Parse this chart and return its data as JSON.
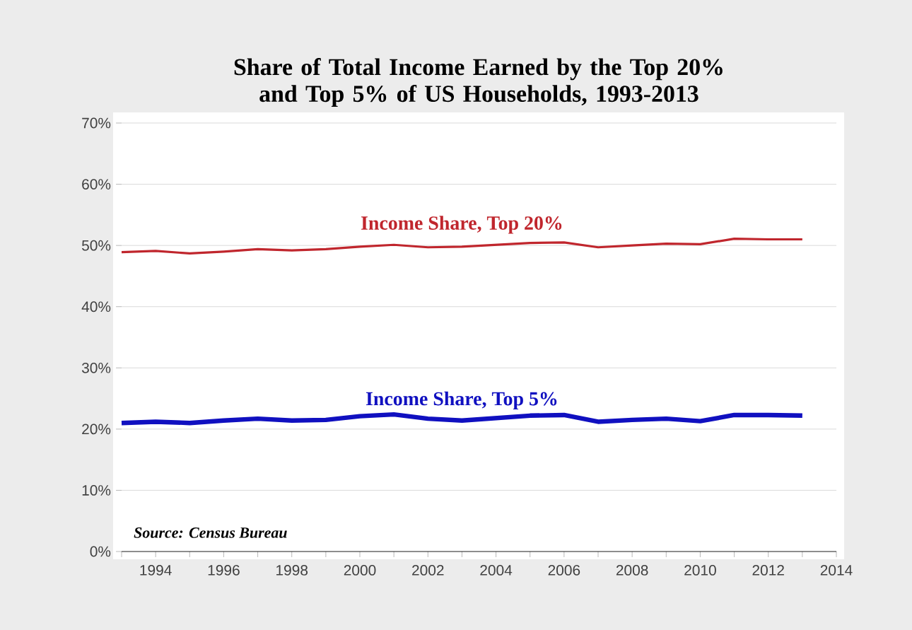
{
  "chart_data": {
    "type": "line",
    "title": "Share of Total Income Earned by the Top 20% and Top 5% of US Households, 1993-2013",
    "x": [
      1993,
      1994,
      1995,
      1996,
      1997,
      1998,
      1999,
      2000,
      2001,
      2002,
      2003,
      2004,
      2005,
      2006,
      2007,
      2008,
      2009,
      2010,
      2011,
      2012,
      2013
    ],
    "series": [
      {
        "name": "Income Share, Top 20%",
        "color": "#c0262d",
        "values": [
          48.9,
          49.1,
          48.7,
          49.0,
          49.4,
          49.2,
          49.4,
          49.8,
          50.1,
          49.7,
          49.8,
          50.1,
          50.4,
          50.5,
          49.7,
          50.0,
          50.3,
          50.2,
          51.1,
          51.0,
          51.0
        ]
      },
      {
        "name": "Income Share, Top 5%",
        "color": "#1010c0",
        "values": [
          21.0,
          21.2,
          21.0,
          21.4,
          21.7,
          21.4,
          21.5,
          22.1,
          22.4,
          21.7,
          21.4,
          21.8,
          22.2,
          22.3,
          21.2,
          21.5,
          21.7,
          21.3,
          22.3,
          22.3,
          22.2
        ]
      }
    ],
    "xlim": [
      1993,
      2014
    ],
    "xticks": [
      {
        "value": 1993,
        "label": null
      },
      1994,
      {
        "value": 1995,
        "label": null
      },
      1996,
      {
        "value": 1997,
        "label": null
      },
      1998,
      {
        "value": 1999,
        "label": null
      },
      2000,
      {
        "value": 2001,
        "label": null
      },
      2002,
      {
        "value": 2003,
        "label": null
      },
      2004,
      {
        "value": 2005,
        "label": null
      },
      2006,
      {
        "value": 2007,
        "label": null
      },
      2008,
      {
        "value": 2009,
        "label": null
      },
      2010,
      {
        "value": 2011,
        "label": null
      },
      2012,
      {
        "value": 2013,
        "label": null
      },
      2014
    ],
    "ylim": [
      0,
      70
    ],
    "yticks": [
      {
        "value": 0,
        "label": "0%"
      },
      {
        "value": 10,
        "label": "10%"
      },
      {
        "value": 20,
        "label": "20%"
      },
      {
        "value": 30,
        "label": "30%"
      },
      {
        "value": 40,
        "label": "40%"
      },
      {
        "value": 50,
        "label": "50%"
      },
      {
        "value": 60,
        "label": "60%"
      },
      {
        "value": 70,
        "label": "70%"
      }
    ],
    "grid": "y",
    "legend": false,
    "marker": "none",
    "line_style": "solid",
    "annotations": [
      "Source: Census Bureau"
    ]
  }
}
